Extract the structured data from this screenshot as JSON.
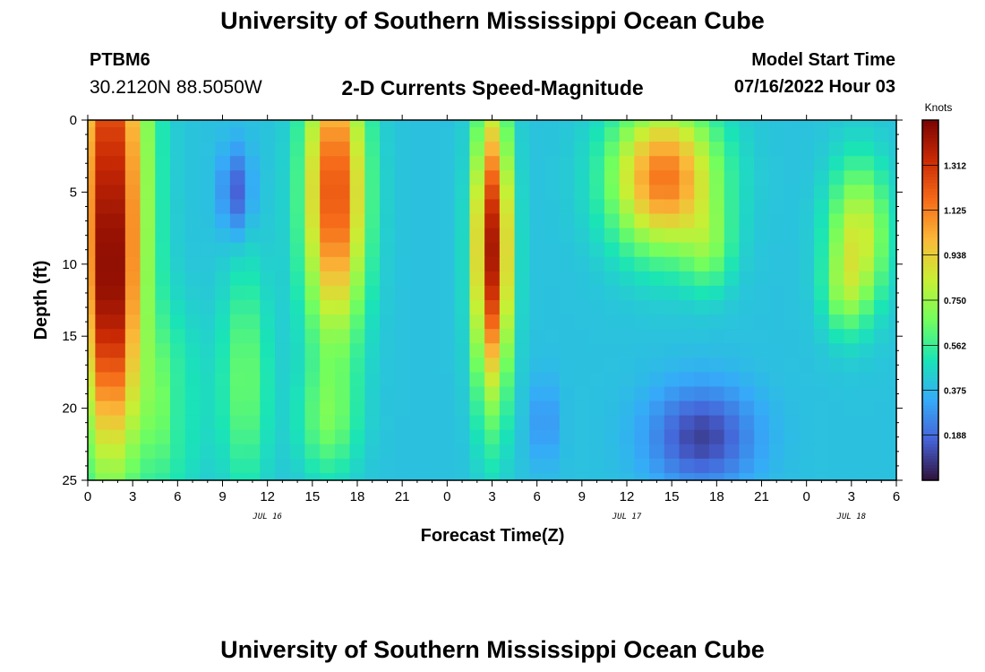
{
  "header": {
    "title": "University of Southern Mississippi Ocean Cube",
    "station": "PTBM6",
    "coords": "30.2120N  88.5050W",
    "subtitle": "2-D Currents Speed-Magnitude",
    "start_label": "Model Start Time",
    "start_value": "07/16/2022 Hour 03"
  },
  "footer": {
    "title": "University of Southern Mississippi Ocean Cube"
  },
  "chart_data": {
    "type": "heatmap",
    "title": "2-D Currents Speed-Magnitude",
    "xlabel": "Forecast Time(Z)",
    "ylabel": "Depth (ft)",
    "x_ticks": [
      {
        "hours": 0,
        "label": "0"
      },
      {
        "hours": 3,
        "label": "3"
      },
      {
        "hours": 6,
        "label": "6"
      },
      {
        "hours": 9,
        "label": "9"
      },
      {
        "hours": 12,
        "label": "12"
      },
      {
        "hours": 15,
        "label": "15"
      },
      {
        "hours": 18,
        "label": "18"
      },
      {
        "hours": 21,
        "label": "21"
      },
      {
        "hours": 24,
        "label": "0"
      },
      {
        "hours": 27,
        "label": "3"
      },
      {
        "hours": 30,
        "label": "6"
      },
      {
        "hours": 33,
        "label": "9"
      },
      {
        "hours": 36,
        "label": "12"
      },
      {
        "hours": 39,
        "label": "15"
      },
      {
        "hours": 42,
        "label": "18"
      },
      {
        "hours": 45,
        "label": "21"
      },
      {
        "hours": 48,
        "label": "0"
      },
      {
        "hours": 51,
        "label": "3"
      },
      {
        "hours": 54,
        "label": "6"
      }
    ],
    "day_labels": [
      {
        "hours": 12,
        "label": "JUL 16"
      },
      {
        "hours": 36,
        "label": "JUL 17"
      },
      {
        "hours": 51,
        "label": "JUL 18"
      }
    ],
    "xlim": [
      0,
      54
    ],
    "y_ticks": [
      0,
      5,
      10,
      15,
      20,
      25
    ],
    "ylim": [
      0,
      25
    ],
    "colorbar": {
      "title": "Knots",
      "min": 0,
      "max": 1.5,
      "labels": [
        "1.312",
        "1.125",
        "0.938",
        "0.750",
        "0.562",
        "0.375",
        "0.188"
      ],
      "stops": [
        "#30123b",
        "#4662d7",
        "#36aaf9",
        "#1ae4b6",
        "#72fe5e",
        "#c8ef34",
        "#faba39",
        "#f66b19",
        "#ca2a04",
        "#7a0403"
      ]
    },
    "nx": 55,
    "ny": 26,
    "blobs": [
      {
        "t": 1.5,
        "d": 5,
        "st": 2.4,
        "sd": 18,
        "a": 0.95
      },
      {
        "t": 1.5,
        "d": 14,
        "st": 1.5,
        "sd": 8,
        "a": 0.3
      },
      {
        "t": 5.6,
        "d": 20,
        "st": 2.0,
        "sd": 6,
        "a": 0.25
      },
      {
        "t": 10.5,
        "d": 18,
        "st": 1.6,
        "sd": 8,
        "a": 0.25
      },
      {
        "t": 16.5,
        "d": 5,
        "st": 2.0,
        "sd": 10,
        "a": 0.85
      },
      {
        "t": 16.0,
        "d": 21,
        "st": 2.0,
        "sd": 4,
        "a": 0.22
      },
      {
        "t": 27.0,
        "d": 9,
        "st": 1.2,
        "sd": 10,
        "a": 1.0
      },
      {
        "t": 38.5,
        "d": 4,
        "st": 3.5,
        "sd": 5,
        "a": 0.75
      },
      {
        "t": 41.5,
        "d": 9,
        "st": 1.6,
        "sd": 3,
        "a": 0.2
      },
      {
        "t": 51.5,
        "d": 8,
        "st": 2.0,
        "sd": 5,
        "a": 0.45
      },
      {
        "t": 50.5,
        "d": 12,
        "st": 1.4,
        "sd": 3,
        "a": 0.2
      }
    ],
    "lows": [
      {
        "t": 9.9,
        "d": 5,
        "st": 1.0,
        "sd": 3,
        "a": 0.25
      },
      {
        "t": 6.2,
        "d": 20,
        "st": 1.0,
        "sd": 4,
        "a": 0.12
      },
      {
        "t": 41.0,
        "d": 22,
        "st": 3.5,
        "sd": 3.5,
        "a": 0.3
      },
      {
        "t": 30.5,
        "d": 21,
        "st": 1.0,
        "sd": 3,
        "a": 0.12
      }
    ]
  }
}
